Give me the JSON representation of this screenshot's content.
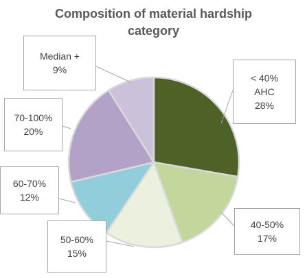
{
  "chart_data": {
    "type": "pie",
    "title": [
      "Composition of material  hardship",
      "category"
    ],
    "slices": [
      {
        "label": [
          "< 40%",
          "AHC"
        ],
        "pct_label": "28%",
        "value": 28,
        "color": "#4e6228"
      },
      {
        "label": [
          "40-50%"
        ],
        "pct_label": "17%",
        "value": 17,
        "color": "#c3d69b"
      },
      {
        "label": [
          "50-60%"
        ],
        "pct_label": "15%",
        "value": 15,
        "color": "#ebf1de"
      },
      {
        "label": [
          "60-70%"
        ],
        "pct_label": "12%",
        "value": 12,
        "color": "#92cddc"
      },
      {
        "label": [
          "70-100%"
        ],
        "pct_label": "20%",
        "value": 20,
        "color": "#b3a2c7"
      },
      {
        "label": [
          "Median +"
        ],
        "pct_label": "9%",
        "value": 9,
        "color": "#ccc1da"
      }
    ],
    "legend": "none"
  }
}
